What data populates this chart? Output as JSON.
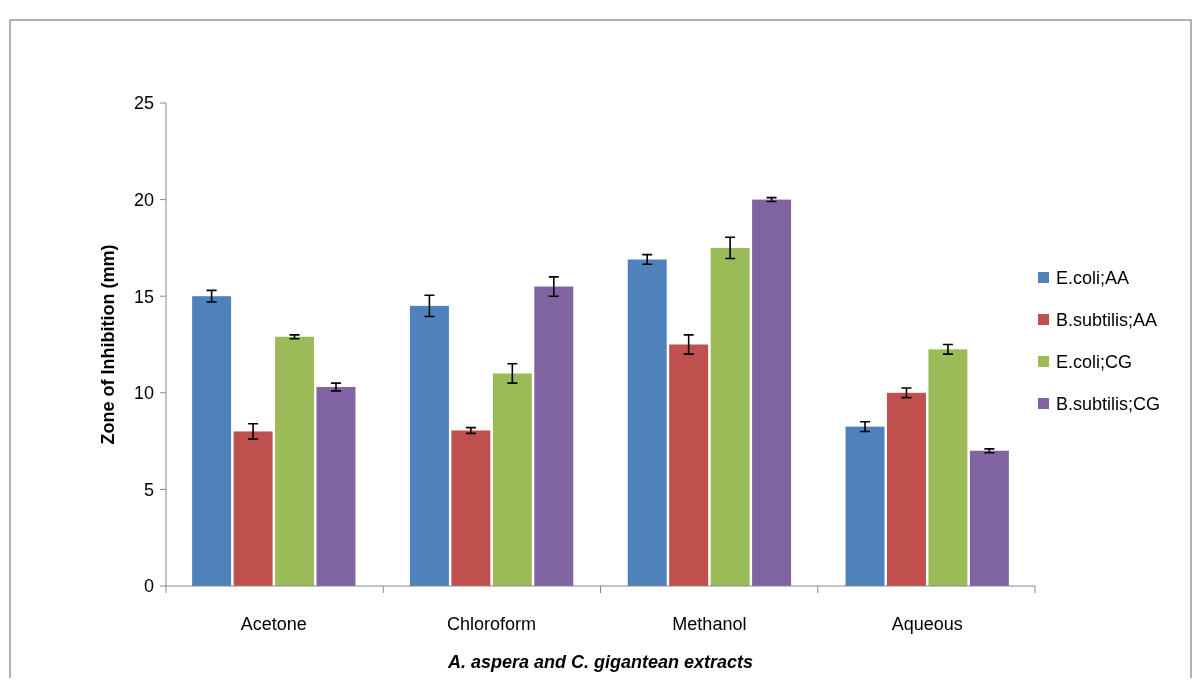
{
  "chart_data": {
    "type": "bar",
    "xlabel": "A. aspera and C. gigantean extracts",
    "ylabel": "Zone of Inhibition (mm)",
    "categories": [
      "Acetone",
      "Chloroform",
      "Methanol",
      "Aqueous"
    ],
    "series": [
      {
        "name": "E.coli;AA",
        "color": "#4f81bd",
        "values": [
          15.0,
          14.5,
          16.9,
          8.25
        ],
        "errors": [
          0.3,
          0.55,
          0.25,
          0.25
        ]
      },
      {
        "name": "B.subtilis;AA",
        "color": "#c0504d",
        "values": [
          8.0,
          8.05,
          12.5,
          10.0
        ],
        "errors": [
          0.4,
          0.15,
          0.5,
          0.25
        ]
      },
      {
        "name": "E.coli;CG",
        "color": "#9bbb59",
        "values": [
          12.9,
          11.0,
          17.5,
          12.25
        ],
        "errors": [
          0.1,
          0.5,
          0.55,
          0.25
        ]
      },
      {
        "name": "B.subtilis;CG",
        "color": "#8064a2",
        "values": [
          10.3,
          15.5,
          20.0,
          7.0
        ],
        "errors": [
          0.2,
          0.5,
          0.1,
          0.1
        ]
      }
    ],
    "ylim": [
      0,
      25
    ],
    "yticks": [
      0,
      5,
      10,
      15,
      20,
      25
    ],
    "grid": false,
    "legend": "right"
  }
}
